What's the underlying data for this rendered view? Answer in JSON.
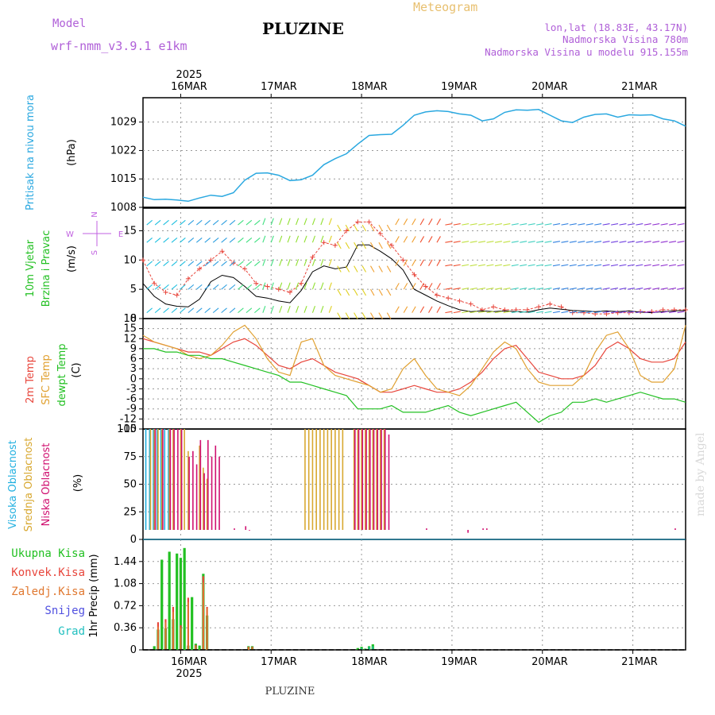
{
  "header": {
    "model_label": "Model",
    "model_name": "wrf-nmm_v3.9.1  e1km",
    "station": "PLUZINE",
    "product": "Meteogram",
    "lonlat": "lon,lat (18.83E, 43.17N)",
    "elevation": "Nadmorska Visina 780m",
    "model_elevation": "Nadmorska Visina u modelu 915.155m",
    "footer_station": "PLUZINE",
    "credit": "made by Angel"
  },
  "time_axis": {
    "year": "2025",
    "days": [
      "16MAR",
      "17MAR",
      "18MAR",
      "19MAR",
      "20MAR",
      "21MAR"
    ]
  },
  "colors": {
    "pressure": "#2aa8e0",
    "temp_2m": "#e8463c",
    "temp_sfc": "#e0a030",
    "dewpoint": "#22c022",
    "cloud_high": "#22b0e0",
    "cloud_mid": "#d8a830",
    "cloud_low": "#d01070",
    "precip_total": "#22c022",
    "precip_conv": "#e8463c",
    "precip_frozen": "#e07830",
    "precip_snow": "#5050e0",
    "precip_graupel": "#22c0c0",
    "wind_speed": "#000000",
    "gust": "#e8463c",
    "compass": "#c060e0"
  },
  "chart_data": [
    {
      "type": "line",
      "panel": "pressure",
      "ylabel_1": "Pritisak na nivou mora",
      "unit": "(hPa)",
      "yticks": [
        "1029",
        "1022",
        "1015",
        "1008"
      ],
      "ylim": [
        1008,
        1035
      ],
      "x_hours": [
        0,
        3,
        6,
        9,
        12,
        15,
        18,
        21,
        24,
        27,
        30,
        33,
        36,
        39,
        42,
        45,
        48,
        51,
        54,
        57,
        60,
        63,
        66,
        69,
        72,
        75,
        78,
        81,
        84,
        87,
        90,
        93,
        96,
        99,
        102,
        105,
        108,
        111,
        114,
        117,
        120,
        123,
        126,
        129,
        132,
        135,
        138,
        141,
        144
      ],
      "values": [
        1010.5,
        1009.9,
        1010.0,
        1009.8,
        1009.5,
        1010.3,
        1011.0,
        1010.7,
        1011.6,
        1014.7,
        1016.4,
        1016.5,
        1015.9,
        1014.6,
        1014.8,
        1015.9,
        1018.5,
        1020.0,
        1021.2,
        1023.6,
        1025.7,
        1025.9,
        1026.0,
        1028.2,
        1030.7,
        1031.5,
        1031.8,
        1031.6,
        1031.0,
        1030.7,
        1029.3,
        1029.8,
        1031.4,
        1032.0,
        1031.9,
        1032.1,
        1030.7,
        1029.3,
        1028.9,
        1030.2,
        1030.9,
        1031.0,
        1030.2,
        1030.8,
        1030.7,
        1030.8,
        1029.8,
        1029.3,
        1028.0
      ],
      "grid": true
    },
    {
      "type": "line",
      "panel": "wind",
      "ylabel_1": "10m Vjetar",
      "ylabel_2": "Brzina i Pravac",
      "unit": "(m/s)",
      "compass": [
        "N",
        "W",
        "E",
        "S"
      ],
      "yticks": [
        "15",
        "10",
        "5",
        "0"
      ],
      "ylim": [
        0,
        19
      ],
      "x_hours": [
        0,
        3,
        6,
        9,
        12,
        15,
        18,
        21,
        24,
        27,
        30,
        33,
        36,
        39,
        42,
        45,
        48,
        51,
        54,
        57,
        60,
        63,
        66,
        69,
        72,
        75,
        78,
        81,
        84,
        87,
        90,
        93,
        96,
        99,
        102,
        105,
        108,
        111,
        114,
        117,
        120,
        123,
        126,
        129,
        132,
        135,
        138,
        141,
        144
      ],
      "series": [
        {
          "values": [
            6.0,
            3.8,
            2.5,
            2.1,
            2.0,
            3.3,
            6.3,
            7.4,
            7.0,
            5.5,
            3.8,
            3.5,
            3.0,
            2.7,
            4.8,
            8.0,
            9.0,
            8.5,
            8.8,
            12.6,
            12.6,
            11.5,
            10.2,
            8.3,
            5.0,
            4.0,
            3.0,
            2.2,
            1.5,
            1.2,
            1.3,
            1.2,
            1.3,
            1.2,
            1.1,
            1.5,
            1.8,
            1.6,
            1.4,
            1.3,
            1.2,
            1.3,
            1.2,
            1.3,
            1.1,
            1.0,
            1.2,
            1.3,
            1.4
          ]
        },
        {
          "values": [
            10.0,
            6.0,
            4.5,
            4.0,
            6.8,
            8.5,
            10.0,
            11.5,
            9.5,
            8.5,
            6.0,
            5.5,
            5.0,
            4.5,
            6.0,
            10.5,
            13.0,
            12.5,
            15.0,
            16.5,
            16.5,
            14.5,
            12.5,
            10.0,
            7.5,
            5.5,
            4.0,
            3.5,
            3.0,
            2.5,
            1.5,
            2.0,
            1.5,
            1.5,
            1.5,
            2.0,
            2.5,
            2.0,
            1.0,
            1.0,
            0.8,
            0.8,
            1.0,
            1.0,
            1.2,
            1.2,
            1.5,
            1.5,
            1.5
          ]
        }
      ],
      "grid": true
    },
    {
      "type": "line",
      "panel": "temperature",
      "ylabel_1": "2m Temp",
      "ylabel_2": "SFC Temp",
      "ylabel_3": "dewpt Temp",
      "unit": "(C)",
      "yticks": [
        "18",
        "15",
        "12",
        "9",
        "6",
        "3",
        "0",
        "-3",
        "-6",
        "-9",
        "-12",
        "-15"
      ],
      "ylim": [
        -15,
        18
      ],
      "x_hours": [
        0,
        3,
        6,
        9,
        12,
        15,
        18,
        21,
        24,
        27,
        30,
        33,
        36,
        39,
        42,
        45,
        48,
        51,
        54,
        57,
        60,
        63,
        66,
        69,
        72,
        75,
        78,
        81,
        84,
        87,
        90,
        93,
        96,
        99,
        102,
        105,
        108,
        111,
        114,
        117,
        120,
        123,
        126,
        129,
        132,
        135,
        138,
        141,
        144
      ],
      "series": [
        {
          "values": [
            12,
            11,
            10,
            9,
            8,
            8,
            7,
            9,
            11,
            12,
            10,
            7,
            4,
            3,
            5,
            6,
            4,
            2,
            1,
            0,
            -2,
            -4,
            -4,
            -3,
            -2,
            -3,
            -4,
            -4,
            -3,
            -1,
            2,
            6,
            9,
            10,
            6,
            2,
            1,
            0,
            0,
            1,
            4,
            9,
            11,
            9,
            6,
            5,
            5,
            6,
            11
          ]
        },
        {
          "values": [
            13,
            11,
            10,
            9,
            7,
            6,
            7,
            10,
            14,
            16,
            12,
            6,
            2,
            1,
            11,
            12,
            4,
            1,
            0,
            -1,
            -2,
            -4,
            -3,
            3,
            6,
            1,
            -3,
            -4,
            -5,
            -2,
            3,
            8,
            11,
            9,
            3,
            -1,
            -2,
            -2,
            -2,
            1,
            8,
            13,
            14,
            9,
            1,
            -1,
            -1,
            3,
            16
          ]
        },
        {
          "values": [
            9,
            9,
            8,
            8,
            7,
            7,
            6,
            6,
            5,
            4,
            3,
            2,
            1,
            -1,
            -1,
            -2,
            -3,
            -4,
            -5,
            -9,
            -9,
            -9,
            -8,
            -10,
            -10,
            -10,
            -9,
            -8,
            -10,
            -11,
            -10,
            -9,
            -8,
            -7,
            -10,
            -13,
            -11,
            -10,
            -7,
            -7,
            -6,
            -7,
            -6,
            -5,
            -4,
            -5,
            -6,
            -6,
            -7
          ]
        }
      ],
      "grid": true
    },
    {
      "type": "bar",
      "panel": "clouds",
      "ylabel_1": "Visoka Oblacnost",
      "ylabel_2": "Srednja Oblacnost",
      "ylabel_3": "Niska Oblacnost",
      "unit": "(%)",
      "yticks": [
        "100",
        "75",
        "50",
        "25",
        "0"
      ],
      "ylim": [
        0,
        100
      ],
      "series": [
        {
          "name": "high",
          "x_hours": [
            1,
            2,
            3,
            4,
            5,
            6,
            7
          ],
          "values": [
            100,
            100,
            100,
            100,
            100,
            100,
            100
          ]
        },
        {
          "name": "mid",
          "x_hours": [
            2,
            3,
            4,
            5,
            7,
            8,
            10,
            11,
            12,
            15,
            16,
            17,
            43,
            44,
            45,
            46,
            47,
            48,
            49,
            50,
            51,
            52,
            53,
            56,
            57,
            58,
            59,
            60,
            61,
            62,
            63,
            64
          ],
          "values": [
            100,
            100,
            100,
            100,
            100,
            100,
            100,
            100,
            80,
            85,
            65,
            55,
            100,
            100,
            100,
            100,
            100,
            100,
            100,
            100,
            100,
            100,
            100,
            100,
            100,
            100,
            100,
            100,
            100,
            100,
            100,
            100
          ]
        },
        {
          "name": "low",
          "x_hours": [
            3,
            5,
            7,
            8,
            9,
            10,
            12,
            13,
            14,
            15,
            16,
            17,
            18,
            19,
            20,
            24,
            27,
            28,
            56,
            57,
            58,
            59,
            60,
            61,
            62,
            63,
            64,
            65,
            75,
            86,
            90,
            91,
            141
          ],
          "values": [
            100,
            100,
            100,
            100,
            100,
            100,
            75,
            80,
            68,
            90,
            60,
            90,
            75,
            85,
            75,
            10,
            12,
            8,
            100,
            100,
            100,
            100,
            100,
            100,
            100,
            100,
            100,
            95,
            10,
            6,
            10,
            10,
            10
          ]
        }
      ],
      "grid": true
    },
    {
      "type": "bar",
      "panel": "precipitation",
      "ylabel": "1hr Precip (mm)",
      "legend": [
        "Ukupna Kisa",
        "Konvek.Kisa",
        "Zaledj.Kisa",
        "Snijeg",
        "Grad"
      ],
      "yticks": [
        "1.44",
        "1.08",
        "0.72",
        "0.36",
        "0"
      ],
      "ylim": [
        0,
        1.8
      ],
      "series": [
        {
          "name": "Ukupna Kisa",
          "x_hours": [
            3,
            4,
            5,
            6,
            7,
            8,
            9,
            10,
            11,
            12,
            13,
            14,
            15,
            16,
            17,
            28,
            29,
            57,
            58,
            59,
            60,
            61
          ],
          "values": [
            0.06,
            0.33,
            1.47,
            0.35,
            1.6,
            0.5,
            1.57,
            1.5,
            1.66,
            0.07,
            0.86,
            0.1,
            0.07,
            1.24,
            0.56,
            0.06,
            0.06,
            0.03,
            0.05,
            0.02,
            0.06,
            0.09
          ]
        },
        {
          "name": "Konvek.Kisa",
          "x_hours": [
            4,
            6,
            8,
            10,
            12,
            14,
            16,
            17,
            28,
            29
          ],
          "values": [
            0.45,
            0.5,
            0.7,
            0.4,
            0.85,
            0.08,
            1.2,
            0.7,
            0.05,
            0.05
          ]
        },
        {
          "name": "Zaledj.Kisa",
          "x_hours": [
            4,
            6,
            8,
            10,
            12,
            14,
            16,
            17,
            28,
            29
          ],
          "values": [
            0.38,
            0.45,
            0.62,
            0.36,
            0.78,
            0.06,
            1.1,
            0.68,
            0.04,
            0.04
          ]
        },
        {
          "name": "Snijeg",
          "x_hours": [
            58,
            59,
            60
          ],
          "values": [
            0.02,
            0.01,
            0.02
          ]
        },
        {
          "name": "Grad",
          "x_hours": [
            58,
            60,
            61
          ],
          "values": [
            0.03,
            0.05,
            0.06
          ]
        }
      ],
      "grid": true
    }
  ]
}
